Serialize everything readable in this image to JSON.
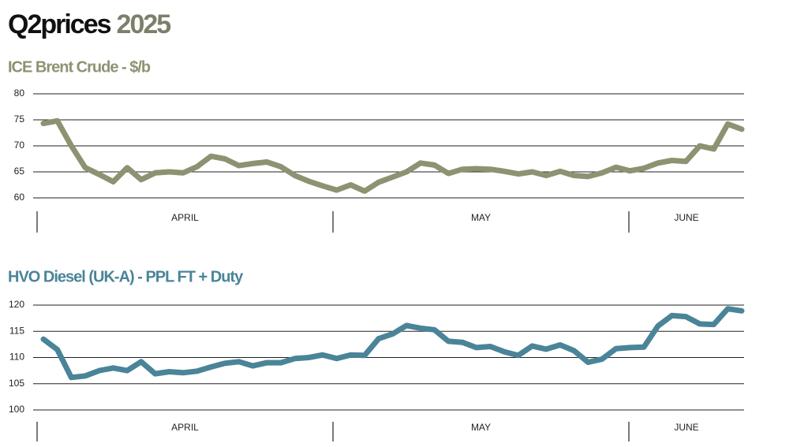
{
  "title": {
    "main": "Q2prices",
    "year": "2025"
  },
  "chart_data": [
    {
      "type": "line",
      "title": "ICE Brent Crude - $/b",
      "color": "#8f9272",
      "months": [
        "APRIL",
        "MAY",
        "JUNE"
      ],
      "values": [
        74.3,
        74.8,
        70,
        65.8,
        64.5,
        63.1,
        65.8,
        63.5,
        64.8,
        65,
        64.8,
        66,
        68,
        67.5,
        66.2,
        66.6,
        66.9,
        66,
        64.3,
        63.2,
        62.3,
        61.5,
        62.5,
        61.3,
        63,
        64,
        65,
        66.7,
        66.3,
        64.7,
        65.5,
        65.6,
        65.5,
        65.1,
        64.6,
        65,
        64.3,
        65.1,
        64.3,
        64.1,
        64.8,
        65.9,
        65.2,
        65.7,
        66.7,
        67.2,
        67,
        70,
        69.4,
        74.2,
        73.2
      ],
      "ylim": [
        60,
        80
      ],
      "yticks": [
        60,
        65,
        70,
        75,
        80
      ],
      "grid": true
    },
    {
      "type": "line",
      "title": "HVO Diesel (UK-A) - PPL FT + Duty",
      "color": "#4a8498",
      "months": [
        "APRIL",
        "MAY",
        "JUNE"
      ],
      "values": [
        113.5,
        111.5,
        106.2,
        106.5,
        107.5,
        108,
        107.5,
        109.2,
        106.9,
        107.3,
        107.1,
        107.4,
        108.2,
        108.9,
        109.2,
        108.4,
        109,
        109,
        109.8,
        110,
        110.5,
        109.8,
        110.5,
        110.4,
        113.6,
        114.5,
        116.1,
        115.6,
        115.3,
        113.1,
        112.9,
        111.9,
        112.1,
        111.1,
        110.4,
        112.2,
        111.6,
        112.4,
        111.3,
        109.1,
        109.7,
        111.7,
        111.9,
        112,
        116,
        118,
        117.8,
        116.4,
        116.3,
        119.3,
        118.9
      ],
      "ylim": [
        100,
        120
      ],
      "yticks": [
        100,
        105,
        110,
        115,
        120
      ],
      "grid": true
    }
  ]
}
